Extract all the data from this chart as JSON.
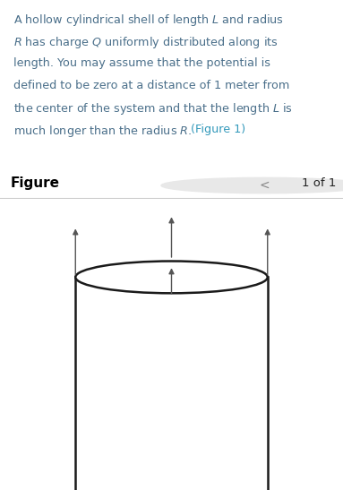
{
  "bg_text_color": "#ddeef6",
  "fig_bg": "#ffffff",
  "text_color": "#4a6f8a",
  "figure_label": "Figure",
  "figure_nav": "1 of 1",
  "cylinder_color": "#1a1a1a",
  "cylinder_lw": 1.8,
  "arrow_color": "#555555",
  "arrow_lw": 1.0,
  "text_lines": [
    "A hollow cylindrical shell of length $\\mathit{L}$ and radius",
    "$\\mathit{R}$ has charge $Q$ uniformly distributed along its",
    "length. You may assume that the potential is",
    "defined to be zero at a distance of 1 meter from",
    "the center of the system and that the length $\\mathit{L}$ is",
    "much longer than the radius $\\mathit{R}$. (Figure 1)"
  ],
  "figure1_color": "#3399bb"
}
